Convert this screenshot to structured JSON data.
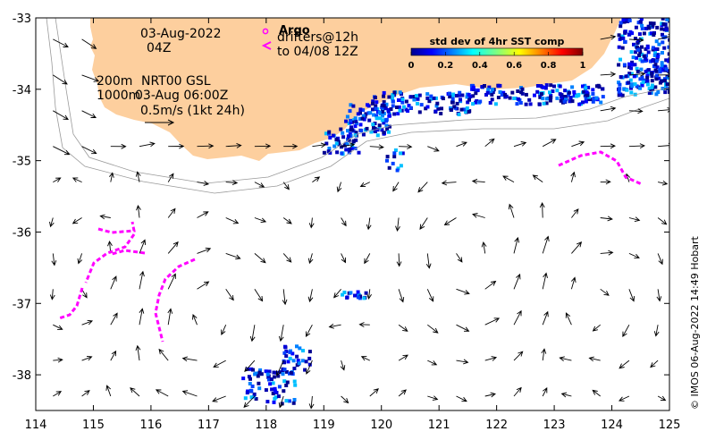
{
  "map": {
    "lon_range": [
      114,
      125
    ],
    "lat_range": [
      -38.5,
      -33
    ],
    "x_ticks": [
      "114",
      "115",
      "116",
      "117",
      "118",
      "119",
      "120",
      "121",
      "122",
      "123",
      "124",
      "125"
    ],
    "y_ticks": [
      "-33",
      "-34",
      "-35",
      "-36",
      "-37",
      "-38"
    ],
    "land_color": "#fdcf9e",
    "arrow_color": "#000000",
    "drifter_color": "#ff00ff",
    "isobath_color": "#9a9a9a"
  },
  "annotations": {
    "date": "03-Aug-2022",
    "time": "04Z",
    "depth_200": "200m",
    "depth_1000": "1000m",
    "product": "NRT00 GSL",
    "product_time": "03-Aug 06:00Z",
    "scale": "0.5m/s (1kt 24h)",
    "argo": "Argo",
    "drifters": "drifters@12h",
    "drifters_to": "to 04/08 12Z"
  },
  "colorbar": {
    "title": "std dev of 4hr SST comp",
    "ticks": [
      "0",
      "0.2",
      "0.4",
      "0.6",
      "0.8",
      "1"
    ],
    "range": [
      0,
      1
    ]
  },
  "credit": "© IMOS 06-Aug-2022 14:49 Hobart"
}
